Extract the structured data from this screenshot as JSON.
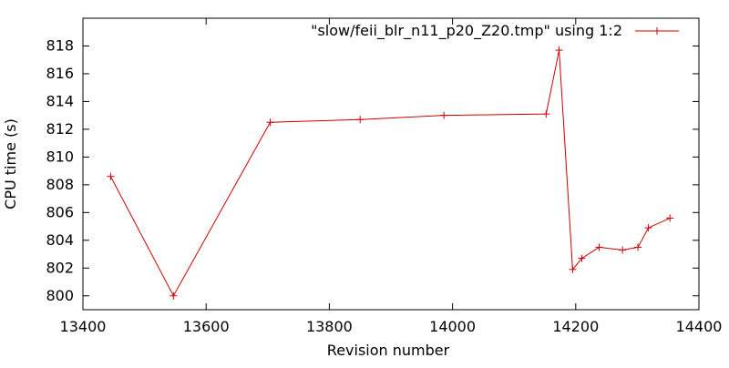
{
  "chart_data": {
    "type": "line",
    "title": "",
    "xlabel": "Revision number",
    "ylabel": "CPU time (s)",
    "xlim": [
      13400,
      14400
    ],
    "ylim": [
      799,
      820
    ],
    "x_ticks": [
      13400,
      13600,
      13800,
      14000,
      14200,
      14400
    ],
    "y_ticks": [
      800,
      802,
      804,
      806,
      808,
      810,
      812,
      814,
      816,
      818
    ],
    "grid": false,
    "legend_position": "top-right",
    "series": [
      {
        "name": "\"slow/feii_blr_n11_p20_Z20.tmp\" using 1:2",
        "color": "#cc0000",
        "marker": "plus",
        "x": [
          13445,
          13547,
          13704,
          13850,
          13986,
          14152,
          14173,
          14195,
          14210,
          14238,
          14276,
          14301,
          14318,
          14353
        ],
        "y": [
          808.6,
          800.0,
          812.5,
          812.7,
          813.0,
          813.1,
          817.7,
          801.9,
          802.7,
          803.5,
          803.3,
          803.5,
          804.9,
          805.6
        ]
      }
    ]
  }
}
